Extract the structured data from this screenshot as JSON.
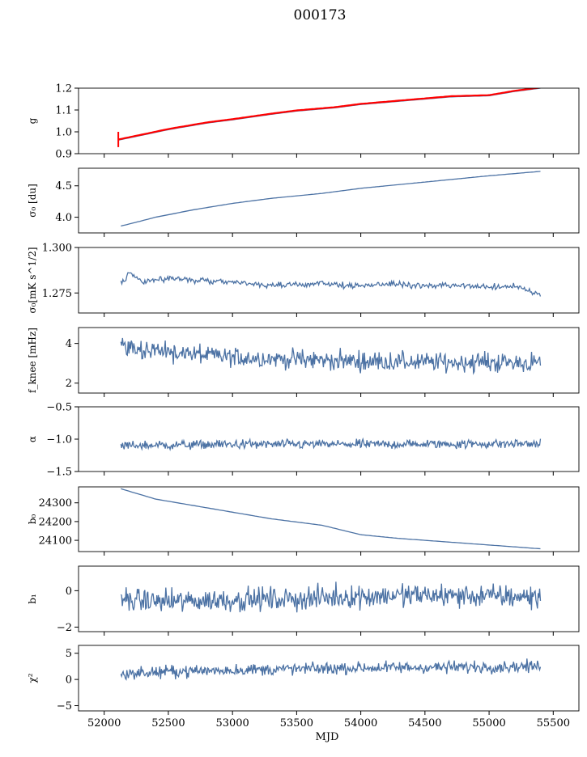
{
  "figure_title": "000173",
  "colors": {
    "series": "#4c72a4",
    "fit": "#ff0000",
    "axes": "#000000"
  },
  "chart_data": [
    {
      "type": "line",
      "id": "g",
      "ylabel": "g",
      "xlim": [
        51800,
        55700
      ],
      "ylim": [
        0.9,
        1.2
      ],
      "yticks": [
        0.9,
        1.0,
        1.1,
        1.2
      ],
      "ytick_labels": [
        "0.9",
        "1.0",
        "1.1",
        "1.2"
      ],
      "series": [
        {
          "style": "smooth",
          "color": "#4c72a4",
          "x": [
            52110,
            52300,
            52500,
            52800,
            53000,
            53300,
            53500,
            53800,
            54000,
            54300,
            54500,
            54700,
            55000,
            55200,
            55400
          ],
          "values": [
            0.962,
            0.985,
            1.01,
            1.04,
            1.055,
            1.08,
            1.095,
            1.11,
            1.125,
            1.14,
            1.15,
            1.16,
            1.165,
            1.185,
            1.2
          ]
        },
        {
          "style": "smooth",
          "color": "#ff0000",
          "x": [
            52110,
            52300,
            52500,
            52800,
            53000,
            53300,
            53500,
            53800,
            54000,
            54300,
            54500,
            54700,
            55000,
            55200,
            55400
          ],
          "values": [
            0.965,
            0.988,
            1.013,
            1.043,
            1.058,
            1.083,
            1.098,
            1.113,
            1.128,
            1.143,
            1.153,
            1.163,
            1.168,
            1.188,
            1.203
          ]
        }
      ],
      "errorbar": {
        "x": 52110,
        "y": 0.965,
        "low": 0.93,
        "high": 1.0
      }
    },
    {
      "type": "line",
      "id": "sigma0",
      "ylabel": "σ₀ [du]",
      "xlim": [
        51800,
        55700
      ],
      "ylim": [
        3.75,
        4.78
      ],
      "yticks": [
        4.0,
        4.5
      ],
      "ytick_labels": [
        "4.0",
        "4.5"
      ],
      "series": [
        {
          "style": "smooth",
          "color": "#4c72a4",
          "x": [
            52130,
            52250,
            52400,
            52700,
            53000,
            53300,
            53700,
            54000,
            54300,
            54700,
            55000,
            55400
          ],
          "values": [
            3.86,
            3.92,
            4.0,
            4.12,
            4.22,
            4.3,
            4.38,
            4.46,
            4.52,
            4.6,
            4.66,
            4.73
          ]
        }
      ]
    },
    {
      "type": "line",
      "id": "sigma0-white",
      "ylabel": "σ₀[mK s^1/2]",
      "xlim": [
        51800,
        55700
      ],
      "ylim": [
        1.264,
        1.3
      ],
      "yticks": [
        1.275,
        1.3
      ],
      "ytick_labels": [
        "1.275",
        "1.300"
      ],
      "series": [
        {
          "style": "noisy",
          "color": "#4c72a4",
          "noise": 0.0012,
          "points": 420,
          "x": [
            52130,
            52200,
            52300,
            52500,
            52800,
            53000,
            53300,
            53700,
            54000,
            54200,
            54500,
            54800,
            55000,
            55200,
            55400
          ],
          "values": [
            1.28,
            1.286,
            1.281,
            1.283,
            1.282,
            1.281,
            1.279,
            1.28,
            1.279,
            1.28,
            1.279,
            1.279,
            1.278,
            1.279,
            1.274
          ]
        }
      ]
    },
    {
      "type": "line",
      "id": "fknee",
      "ylabel": "f_knee [mHz]",
      "xlim": [
        51800,
        55700
      ],
      "ylim": [
        1.5,
        4.8
      ],
      "yticks": [
        2,
        4
      ],
      "ytick_labels": [
        "2",
        "4"
      ],
      "series": [
        {
          "style": "noisy",
          "color": "#4c72a4",
          "noise": 0.35,
          "points": 520,
          "x": [
            52130,
            52300,
            52600,
            53000,
            53500,
            54000,
            54500,
            55000,
            55400
          ],
          "values": [
            4.0,
            3.7,
            3.5,
            3.3,
            3.2,
            3.1,
            3.05,
            3.05,
            3.0
          ]
        }
      ]
    },
    {
      "type": "line",
      "id": "alpha",
      "ylabel": "α",
      "xlim": [
        51800,
        55700
      ],
      "ylim": [
        -1.5,
        -0.5
      ],
      "yticks": [
        -1.5,
        -1.0,
        -0.5
      ],
      "ytick_labels": [
        "−1.5",
        "−1.0",
        "−0.5"
      ],
      "series": [
        {
          "style": "noisy",
          "color": "#4c72a4",
          "noise": 0.05,
          "points": 520,
          "x": [
            52130,
            53000,
            54000,
            55400
          ],
          "values": [
            -1.1,
            -1.08,
            -1.08,
            -1.07
          ]
        }
      ]
    },
    {
      "type": "line",
      "id": "b0",
      "ylabel": "b₀",
      "xlim": [
        51800,
        55700
      ],
      "ylim": [
        24040,
        24385
      ],
      "yticks": [
        24100,
        24200,
        24300
      ],
      "ytick_labels": [
        "24100",
        "24200",
        "24300"
      ],
      "series": [
        {
          "style": "smooth",
          "color": "#4c72a4",
          "x": [
            52130,
            52400,
            52700,
            53000,
            53300,
            53700,
            54000,
            54300,
            54700,
            55000,
            55400
          ],
          "values": [
            24375,
            24320,
            24285,
            24250,
            24215,
            24180,
            24130,
            24110,
            24090,
            24075,
            24055
          ]
        }
      ]
    },
    {
      "type": "line",
      "id": "b1",
      "ylabel": "b₁",
      "xlim": [
        51800,
        55700
      ],
      "ylim": [
        -2.25,
        1.35
      ],
      "yticks": [
        -2,
        0
      ],
      "ytick_labels": [
        "−2",
        "0"
      ],
      "series": [
        {
          "style": "noisy",
          "color": "#4c72a4",
          "noise": 0.45,
          "points": 560,
          "x": [
            52130,
            52500,
            53000,
            53500,
            54000,
            54500,
            55000,
            55400
          ],
          "values": [
            -0.5,
            -0.6,
            -0.5,
            -0.45,
            -0.3,
            -0.25,
            -0.3,
            -0.35
          ]
        }
      ]
    },
    {
      "type": "line",
      "id": "chi2",
      "ylabel": "χ²",
      "xlim": [
        51800,
        55700
      ],
      "ylim": [
        -6,
        6.5
      ],
      "yticks": [
        -5,
        0,
        5
      ],
      "ytick_labels": [
        "−5",
        "0",
        "5"
      ],
      "xticks": [
        52000,
        52500,
        53000,
        53500,
        54000,
        54500,
        55000,
        55500
      ],
      "xtick_labels": [
        "52000",
        "52500",
        "53000",
        "53500",
        "54000",
        "54500",
        "55000",
        "55500"
      ],
      "xlabel": "MJD",
      "series": [
        {
          "style": "noisy",
          "color": "#4c72a4",
          "noise": 0.8,
          "points": 560,
          "x": [
            52130,
            52500,
            53000,
            53500,
            54000,
            54500,
            55000,
            55400
          ],
          "values": [
            1.0,
            1.5,
            1.8,
            2.0,
            2.2,
            2.3,
            2.4,
            2.5
          ]
        }
      ]
    }
  ]
}
